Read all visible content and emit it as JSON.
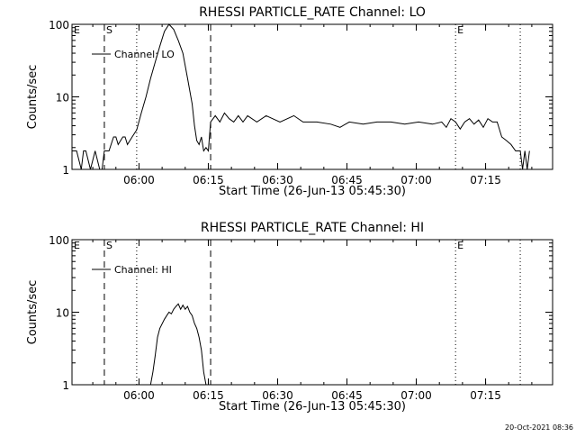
{
  "chart_data": [
    {
      "type": "line",
      "title": "RHESSI PARTICLE_RATE Channel: LO",
      "xlabel": "Start Time (26-Jun-13 05:45:30)",
      "ylabel": "Counts/sec",
      "yscale": "log",
      "ylim": [
        1,
        100
      ],
      "xlim": [
        "05:45:30",
        "07:29:30"
      ],
      "x_ticks": [
        "06:00",
        "06:15",
        "06:30",
        "06:45",
        "07:00",
        "07:15"
      ],
      "y_ticks": [
        "1",
        "10",
        "100"
      ],
      "legend": "Channel: LO",
      "grid": false,
      "markers": [
        {
          "label": "E",
          "time": "05:45:30",
          "style": "dotted"
        },
        {
          "label": "S",
          "time": "05:52:30",
          "style": "dashed"
        },
        {
          "label": "",
          "time": "05:59:30",
          "style": "dotted"
        },
        {
          "label": "",
          "time": "06:15:30",
          "style": "dashed"
        },
        {
          "label": "E",
          "time": "07:08:30",
          "style": "dotted"
        },
        {
          "label": "",
          "time": "07:22:30",
          "style": "dotted"
        }
      ],
      "series": [
        {
          "name": "Channel: LO",
          "x_minutes": [
            0,
            1,
            2,
            2.5,
            3,
            4,
            5,
            6,
            6.5,
            7,
            7.5,
            8,
            9,
            9.5,
            10,
            11,
            11.5,
            12,
            13,
            14,
            15,
            16,
            17,
            18,
            19,
            20,
            21,
            22,
            23,
            24,
            25,
            26,
            26.5,
            27,
            27.5,
            28,
            28.5,
            29,
            29.5,
            30,
            31,
            32,
            33,
            34,
            35,
            36,
            37,
            38,
            40,
            42,
            45,
            48,
            50,
            53,
            56,
            58,
            60,
            63,
            66,
            69,
            72,
            75,
            78,
            80,
            81,
            82,
            83,
            84,
            85,
            86,
            87,
            88,
            89,
            90,
            91,
            92,
            93,
            94,
            95,
            96,
            96.5,
            97,
            97.5,
            98,
            98.5,
            99
          ],
          "y": [
            1.8,
            1.8,
            1,
            1.8,
            1.8,
            1,
            1.8,
            1,
            1,
            1.8,
            1.8,
            1.8,
            2.8,
            2.8,
            2.2,
            2.8,
            2.8,
            2.2,
            2.8,
            3.5,
            6,
            10,
            18,
            30,
            50,
            80,
            100,
            85,
            60,
            40,
            18,
            8,
            4,
            2.5,
            2.2,
            2.8,
            1.8,
            2,
            1.8,
            4.5,
            5.5,
            4.5,
            6,
            5,
            4.5,
            5.5,
            4.5,
            5.5,
            4.5,
            5.5,
            4.5,
            5.5,
            4.5,
            4.5,
            4.2,
            3.8,
            4.5,
            4.2,
            4.5,
            4.5,
            4.2,
            4.5,
            4.2,
            4.5,
            3.8,
            5,
            4.5,
            3.6,
            4.5,
            5,
            4.2,
            4.8,
            3.8,
            5,
            4.5,
            4.5,
            2.8,
            2.5,
            2.2,
            1.8,
            1.8,
            1.8,
            1,
            1.8,
            1,
            1.8
          ],
          "color": "#000000"
        }
      ]
    },
    {
      "type": "line",
      "title": "RHESSI PARTICLE_RATE Channel: HI",
      "xlabel": "Start Time (26-Jun-13 05:45:30)",
      "ylabel": "Counts/sec",
      "yscale": "log",
      "ylim": [
        1,
        100
      ],
      "xlim": [
        "05:45:30",
        "07:29:30"
      ],
      "x_ticks": [
        "06:00",
        "06:15",
        "06:30",
        "06:45",
        "07:00",
        "07:15"
      ],
      "y_ticks": [
        "1",
        "10",
        "100"
      ],
      "legend": "Channel: HI",
      "grid": false,
      "markers": [
        {
          "label": "E",
          "time": "05:45:30",
          "style": "dotted"
        },
        {
          "label": "S",
          "time": "05:52:30",
          "style": "dashed"
        },
        {
          "label": "",
          "time": "05:59:30",
          "style": "dotted"
        },
        {
          "label": "",
          "time": "06:15:30",
          "style": "dashed"
        },
        {
          "label": "E",
          "time": "07:08:30",
          "style": "dotted"
        },
        {
          "label": "",
          "time": "07:22:30",
          "style": "dotted"
        }
      ],
      "series": [
        {
          "name": "Channel: HI",
          "x_minutes": [
            17,
            17.5,
            18,
            18.5,
            19,
            20,
            20.5,
            21,
            21.5,
            22,
            22.5,
            23,
            23.5,
            24,
            24.5,
            25,
            25.5,
            26,
            26.5,
            27,
            27.5,
            28,
            28.5,
            29
          ],
          "y": [
            1,
            1.5,
            2.5,
            4.5,
            6,
            8,
            9,
            10,
            9.5,
            11,
            12,
            13,
            11,
            12.5,
            11,
            12,
            10,
            9,
            7,
            6,
            4.5,
            3,
            1.5,
            1
          ],
          "color": "#000000"
        }
      ]
    }
  ],
  "footer": {
    "timestamp": "20-Oct-2021 08:36"
  }
}
